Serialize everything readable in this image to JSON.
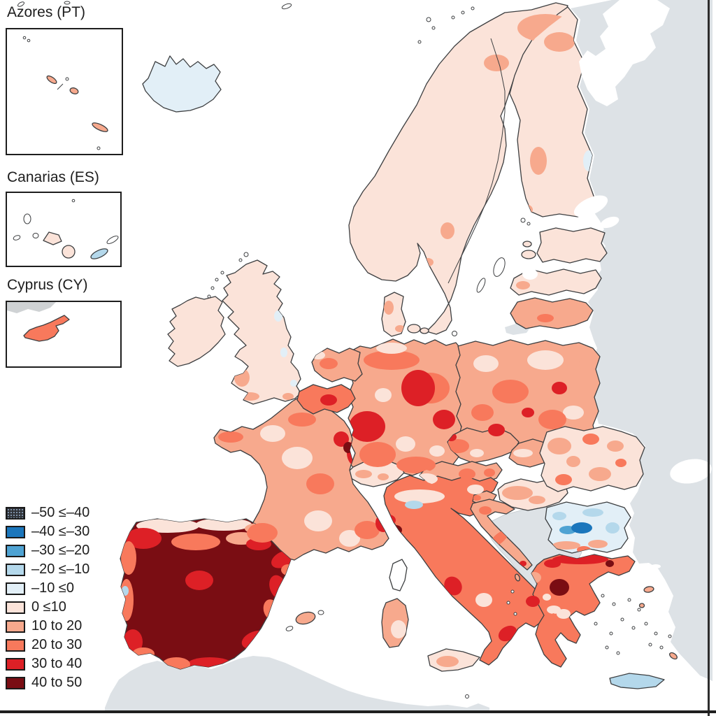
{
  "insets": [
    {
      "id": "azores",
      "label": "Azores (PT)"
    },
    {
      "id": "canarias",
      "label": "Canarias (ES)"
    },
    {
      "id": "cyprus",
      "label": "Cyprus (CY)"
    }
  ],
  "legend": {
    "items": [
      {
        "label": "–50 ≤–40",
        "color": "#2f3237",
        "pattern": "stipple"
      },
      {
        "label": "–40 ≤–30",
        "color": "#1b76bc"
      },
      {
        "label": "–30 ≤–20",
        "color": "#4fa3d3"
      },
      {
        "label": "–20 ≤–10",
        "color": "#b4d8eb"
      },
      {
        "label": "–10 ≤0",
        "color": "#e2eff7"
      },
      {
        "label": "0 ≤10",
        "color": "#fbe3d9"
      },
      {
        "label": "10 to 20",
        "color": "#f7a98d"
      },
      {
        "label": "20 to 30",
        "color": "#f8795c"
      },
      {
        "label": "30 to 40",
        "color": "#dd2026"
      },
      {
        "label": "40 to 50",
        "color": "#7a0d13"
      }
    ]
  },
  "map": {
    "colors": {
      "sea": "#ffffff",
      "non_eu_land": "#dde2e6",
      "inset_land_gray": "#cfd2d4",
      "border": "#3d3f41"
    },
    "regions": [
      {
        "id": "iceland",
        "name": "Iceland",
        "bin": 5
      },
      {
        "id": "scandinavia",
        "name": "Norway and Sweden",
        "bin": 6
      },
      {
        "id": "finland",
        "name": "Finland",
        "bin": 6
      },
      {
        "id": "denmark",
        "name": "Denmark",
        "bin": 6
      },
      {
        "id": "uk",
        "name": "United Kingdom",
        "bin": 6
      },
      {
        "id": "ireland",
        "name": "Ireland",
        "bin": 6
      },
      {
        "id": "netherlands",
        "name": "Netherlands",
        "bin": 7
      },
      {
        "id": "belgium",
        "name": "Belgium",
        "bin": 8
      },
      {
        "id": "germany",
        "name": "Germany",
        "bin": 7
      },
      {
        "id": "poland",
        "name": "Poland",
        "bin": 7
      },
      {
        "id": "czechia",
        "name": "Czechia",
        "bin": 7
      },
      {
        "id": "slovakia",
        "name": "Slovakia",
        "bin": 7
      },
      {
        "id": "austria",
        "name": "Austria",
        "bin": 7
      },
      {
        "id": "switzerland",
        "name": "Switzerland",
        "bin": 6
      },
      {
        "id": "hungary",
        "name": "Hungary",
        "bin": 6
      },
      {
        "id": "france",
        "name": "France",
        "bin": 7
      },
      {
        "id": "iberia",
        "name": "Spain and Portugal",
        "bin": 10
      },
      {
        "id": "italy",
        "name": "Italy",
        "bin": 8
      },
      {
        "id": "sicily",
        "name": "Sicily",
        "bin": 6
      },
      {
        "id": "sardinia",
        "name": "Sardinia",
        "bin": 7
      },
      {
        "id": "corsica",
        "name": "Corsica",
        "bin": null
      },
      {
        "id": "slovenia",
        "name": "Slovenia",
        "bin": 7
      },
      {
        "id": "croatia",
        "name": "Croatia",
        "bin": 7
      },
      {
        "id": "estonia",
        "name": "Estonia",
        "bin": 6
      },
      {
        "id": "latvia",
        "name": "Latvia",
        "bin": 6
      },
      {
        "id": "lithuania",
        "name": "Lithuania",
        "bin": 7
      },
      {
        "id": "romania",
        "name": "Romania",
        "bin": 6
      },
      {
        "id": "bulgaria",
        "name": "Bulgaria",
        "bin": 5
      },
      {
        "id": "greece",
        "name": "Greece",
        "bin": 8
      },
      {
        "id": "crete",
        "name": "Crete",
        "bin": 4
      },
      {
        "id": "mallorca",
        "name": "Mallorca",
        "bin": 7
      }
    ],
    "patches": [
      [
        "iberia",
        240,
        752,
        45,
        10,
        0,
        6
      ],
      [
        "iberia",
        320,
        750,
        40,
        9,
        0,
        6
      ],
      [
        "iberia",
        370,
        756,
        20,
        8,
        0,
        7
      ],
      [
        "iberia",
        205,
        770,
        26,
        15,
        0,
        9
      ],
      [
        "iberia",
        280,
        775,
        35,
        12,
        0,
        8
      ],
      [
        "iberia",
        345,
        770,
        22,
        9,
        0,
        7
      ],
      [
        "iberia",
        370,
        778,
        18,
        9,
        0,
        9
      ],
      [
        "iberia",
        405,
        800,
        18,
        11,
        -25,
        9
      ],
      [
        "iberia",
        412,
        815,
        10,
        8,
        0,
        8
      ],
      [
        "iberia",
        398,
        840,
        12,
        18,
        -20,
        9
      ],
      [
        "iberia",
        388,
        872,
        11,
        15,
        -15,
        8
      ],
      [
        "iberia",
        365,
        915,
        20,
        12,
        -20,
        9
      ],
      [
        "iberia",
        300,
        950,
        32,
        10,
        0,
        9
      ],
      [
        "iberia",
        252,
        950,
        20,
        10,
        0,
        8
      ],
      [
        "iberia",
        230,
        958,
        13,
        8,
        0,
        9
      ],
      [
        "iberia",
        184,
        798,
        11,
        24,
        0,
        8
      ],
      [
        "iberia",
        181,
        858,
        10,
        30,
        0,
        8
      ],
      [
        "iberia",
        190,
        918,
        14,
        18,
        0,
        9
      ],
      [
        "iberia",
        179,
        845,
        5,
        7,
        0,
        4
      ],
      [
        "iberia",
        205,
        935,
        16,
        9,
        0,
        8
      ],
      [
        "iberia",
        285,
        830,
        20,
        14,
        0,
        9
      ],
      [
        "france",
        355,
        700,
        25,
        18,
        0,
        6
      ],
      [
        "france",
        425,
        655,
        22,
        16,
        0,
        6
      ],
      [
        "france",
        455,
        745,
        20,
        15,
        0,
        6
      ],
      [
        "france",
        390,
        620,
        18,
        12,
        0,
        6
      ],
      [
        "france",
        500,
        770,
        15,
        12,
        0,
        6
      ],
      [
        "france",
        375,
        762,
        22,
        14,
        0,
        8
      ],
      [
        "france",
        458,
        692,
        20,
        15,
        0,
        8
      ],
      [
        "france",
        525,
        758,
        18,
        13,
        0,
        8
      ],
      [
        "france",
        432,
        600,
        20,
        10,
        0,
        8
      ],
      [
        "france",
        512,
        648,
        16,
        20,
        0,
        9
      ],
      [
        "france",
        532,
        688,
        13,
        15,
        0,
        9
      ],
      [
        "france",
        548,
        748,
        11,
        13,
        0,
        9
      ],
      [
        "france",
        488,
        628,
        11,
        11,
        0,
        9
      ],
      [
        "france",
        498,
        640,
        7,
        8,
        0,
        10
      ],
      [
        "france",
        330,
        625,
        18,
        8,
        0,
        8
      ],
      [
        "germany",
        560,
        515,
        40,
        14,
        0,
        8
      ],
      [
        "germany",
        615,
        555,
        28,
        22,
        0,
        8
      ],
      [
        "germany",
        540,
        650,
        26,
        18,
        0,
        8
      ],
      [
        "germany",
        595,
        665,
        28,
        12,
        0,
        8
      ],
      [
        "germany",
        525,
        610,
        26,
        22,
        0,
        9
      ],
      [
        "germany",
        598,
        555,
        24,
        26,
        0,
        9
      ],
      [
        "germany",
        635,
        600,
        16,
        14,
        0,
        9
      ],
      [
        "germany",
        580,
        635,
        14,
        11,
        0,
        6
      ],
      [
        "germany",
        548,
        565,
        12,
        10,
        0,
        6
      ],
      [
        "germany",
        625,
        645,
        11,
        8,
        0,
        6
      ],
      [
        "germany",
        560,
        498,
        22,
        8,
        0,
        6
      ],
      [
        "netherlands",
        470,
        520,
        13,
        8,
        0,
        8
      ],
      [
        "netherlands",
        455,
        508,
        10,
        6,
        0,
        6
      ],
      [
        "belgium",
        470,
        572,
        12,
        8,
        0,
        9
      ],
      [
        "belgium",
        492,
        594,
        6,
        7,
        0,
        9
      ],
      [
        "poland",
        780,
        515,
        26,
        14,
        0,
        6
      ],
      [
        "poland",
        695,
        520,
        18,
        12,
        0,
        6
      ],
      [
        "poland",
        820,
        590,
        15,
        10,
        0,
        6
      ],
      [
        "poland",
        730,
        560,
        26,
        17,
        0,
        8
      ],
      [
        "poland",
        790,
        600,
        20,
        14,
        0,
        8
      ],
      [
        "poland",
        690,
        590,
        16,
        12,
        0,
        8
      ],
      [
        "poland",
        710,
        615,
        12,
        9,
        0,
        9
      ],
      [
        "poland",
        800,
        555,
        11,
        9,
        0,
        9
      ],
      [
        "poland",
        755,
        590,
        9,
        7,
        0,
        9
      ],
      [
        "poland",
        840,
        520,
        12,
        10,
        0,
        7
      ],
      [
        "czechia",
        655,
        638,
        16,
        10,
        0,
        8
      ],
      [
        "czechia",
        645,
        625,
        8,
        6,
        0,
        9
      ],
      [
        "czechia",
        682,
        648,
        10,
        6,
        0,
        6
      ],
      [
        "slovakia",
        748,
        648,
        14,
        6,
        0,
        6
      ],
      [
        "austria",
        610,
        685,
        16,
        8,
        0,
        6
      ],
      [
        "austria",
        668,
        678,
        12,
        8,
        0,
        8
      ],
      [
        "austria",
        700,
        676,
        8,
        6,
        0,
        8
      ],
      [
        "switzerland",
        520,
        678,
        12,
        6,
        0,
        7
      ],
      [
        "switzerland",
        548,
        682,
        8,
        5,
        0,
        7
      ],
      [
        "hungary",
        740,
        705,
        22,
        10,
        0,
        7
      ],
      [
        "hungary",
        768,
        715,
        12,
        6,
        0,
        7
      ],
      [
        "slovenia",
        682,
        712,
        6,
        4,
        0,
        8
      ],
      [
        "croatia",
        714,
        770,
        16,
        7,
        -40,
        8
      ],
      [
        "croatia",
        748,
        806,
        5,
        4,
        0,
        9
      ],
      [
        "croatia",
        694,
        730,
        9,
        6,
        0,
        8
      ],
      [
        "italy",
        600,
        710,
        36,
        10,
        0,
        6
      ],
      [
        "italy",
        592,
        722,
        13,
        6,
        0,
        4
      ],
      [
        "italy",
        566,
        758,
        9,
        7,
        0,
        10
      ],
      [
        "italy",
        556,
        744,
        10,
        8,
        0,
        9
      ],
      [
        "italy",
        648,
        838,
        12,
        14,
        -35,
        9
      ],
      [
        "italy",
        692,
        858,
        12,
        10,
        0,
        6
      ],
      [
        "italy",
        726,
        906,
        14,
        10,
        -30,
        9
      ],
      [
        "italy",
        762,
        860,
        10,
        8,
        0,
        9
      ],
      [
        "italy",
        792,
        872,
        10,
        6,
        0,
        6
      ],
      [
        "italy",
        680,
        700,
        12,
        7,
        0,
        6
      ],
      [
        "sicily",
        640,
        946,
        16,
        8,
        0,
        7
      ],
      [
        "sardinia",
        570,
        900,
        11,
        13,
        0,
        6
      ],
      [
        "scandinavia",
        780,
        40,
        40,
        20,
        0,
        7
      ],
      [
        "scandinavia",
        710,
        90,
        18,
        12,
        0,
        7
      ],
      [
        "scandinavia",
        640,
        330,
        10,
        12,
        0,
        7
      ],
      [
        "scandinavia",
        612,
        375,
        8,
        6,
        0,
        7
      ],
      [
        "finland",
        800,
        60,
        22,
        14,
        0,
        7
      ],
      [
        "finland",
        770,
        230,
        12,
        20,
        0,
        7
      ],
      [
        "finland",
        752,
        300,
        10,
        8,
        0,
        7
      ],
      [
        "finland",
        842,
        230,
        8,
        15,
        0,
        5
      ],
      [
        "uk",
        346,
        540,
        11,
        13,
        0,
        7
      ],
      [
        "uk",
        358,
        567,
        13,
        6,
        0,
        7
      ],
      [
        "uk",
        412,
        567,
        8,
        5,
        0,
        7
      ],
      [
        "uk",
        398,
        452,
        6,
        8,
        0,
        5
      ],
      [
        "uk",
        406,
        504,
        5,
        7,
        0,
        5
      ],
      [
        "uk",
        420,
        548,
        5,
        5,
        0,
        5
      ],
      [
        "denmark",
        556,
        440,
        7,
        10,
        0,
        7
      ],
      [
        "denmark",
        572,
        470,
        7,
        5,
        0,
        7
      ],
      [
        "latvia",
        748,
        408,
        10,
        6,
        0,
        7
      ],
      [
        "lithuania",
        780,
        455,
        12,
        6,
        0,
        8
      ],
      [
        "romania",
        800,
        638,
        17,
        12,
        0,
        7
      ],
      [
        "romania",
        858,
        678,
        16,
        10,
        0,
        7
      ],
      [
        "romania",
        880,
        638,
        12,
        8,
        0,
        7
      ],
      [
        "romania",
        845,
        628,
        12,
        8,
        0,
        8
      ],
      [
        "romania",
        806,
        686,
        12,
        8,
        0,
        8
      ],
      [
        "romania",
        888,
        662,
        8,
        6,
        0,
        8
      ],
      [
        "romania",
        820,
        660,
        10,
        8,
        0,
        7
      ],
      [
        "bulgaria",
        848,
        733,
        15,
        6,
        0,
        4
      ],
      [
        "bulgaria",
        876,
        755,
        10,
        8,
        0,
        4
      ],
      [
        "bulgaria",
        800,
        738,
        10,
        6,
        0,
        4
      ],
      [
        "bulgaria",
        812,
        758,
        12,
        6,
        0,
        3
      ],
      [
        "bulgaria",
        832,
        755,
        15,
        8,
        0,
        2
      ],
      [
        "bulgaria",
        810,
        780,
        20,
        6,
        0,
        7
      ],
      [
        "bulgaria",
        855,
        778,
        14,
        6,
        0,
        7
      ],
      [
        "bulgaria",
        835,
        786,
        10,
        5,
        0,
        8
      ],
      [
        "greece",
        830,
        800,
        40,
        7,
        0,
        9
      ],
      [
        "greece",
        790,
        806,
        12,
        6,
        0,
        9
      ],
      [
        "greece",
        800,
        840,
        14,
        12,
        0,
        10
      ],
      [
        "greece",
        764,
        826,
        10,
        8,
        0,
        7
      ],
      [
        "greece",
        806,
        878,
        10,
        7,
        0,
        6
      ],
      [
        "greece",
        782,
        854,
        6,
        5,
        0,
        6
      ],
      [
        "greece",
        762,
        926,
        6,
        5,
        0,
        9
      ],
      [
        "greece",
        872,
        806,
        6,
        5,
        0,
        10
      ]
    ]
  }
}
